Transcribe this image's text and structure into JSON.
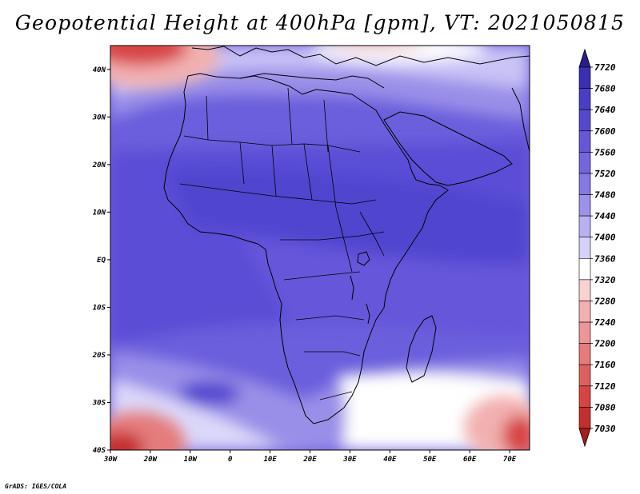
{
  "title": "Geopotential Height at 400hPa [gpm], VT: 2021050815",
  "credit": "GrADS: IGES/COLA",
  "map": {
    "lon_range": [
      -30,
      75
    ],
    "lat_range": [
      -40,
      45
    ],
    "lon_ticks": [
      {
        "value": -30,
        "label": "30W"
      },
      {
        "value": -20,
        "label": "20W"
      },
      {
        "value": -10,
        "label": "10W"
      },
      {
        "value": 0,
        "label": "0"
      },
      {
        "value": 10,
        "label": "10E"
      },
      {
        "value": 20,
        "label": "20E"
      },
      {
        "value": 30,
        "label": "30E"
      },
      {
        "value": 40,
        "label": "40E"
      },
      {
        "value": 50,
        "label": "50E"
      },
      {
        "value": 60,
        "label": "60E"
      },
      {
        "value": 70,
        "label": "70E"
      }
    ],
    "lat_ticks": [
      {
        "value": 40,
        "label": "40N"
      },
      {
        "value": 30,
        "label": "30N"
      },
      {
        "value": 20,
        "label": "20N"
      },
      {
        "value": 10,
        "label": "10N"
      },
      {
        "value": 0,
        "label": "EQ"
      },
      {
        "value": -10,
        "label": "10S"
      },
      {
        "value": -20,
        "label": "20S"
      },
      {
        "value": -30,
        "label": "30S"
      },
      {
        "value": -40,
        "label": "40S"
      }
    ],
    "variable": "Geopotential Height",
    "level": "400hPa",
    "units": "gpm",
    "valid_time": "2021050815"
  },
  "colorbar": {
    "labels": [
      "7720",
      "7680",
      "7640",
      "7600",
      "7560",
      "7520",
      "7480",
      "7440",
      "7400",
      "7360",
      "7320",
      "7280",
      "7240",
      "7200",
      "7160",
      "7120",
      "7080",
      "7030"
    ],
    "colors": [
      "#2a1e8c",
      "#3a2fb4",
      "#4a3ec8",
      "#5548d0",
      "#6457d8",
      "#7265de",
      "#8478e4",
      "#9c92ea",
      "#b8b1f1",
      "#d5d1f8",
      "#ffffff",
      "#f9d2d2",
      "#f2b0b0",
      "#ec9696",
      "#e57b7b",
      "#df6060",
      "#d84444",
      "#c52e2e",
      "#a81c1c"
    ]
  }
}
